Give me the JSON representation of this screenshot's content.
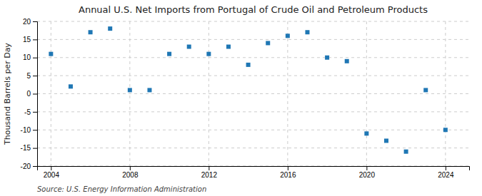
{
  "chart_data": {
    "type": "scatter",
    "title": "Annual U.S. Net Imports from Portugal of Crude Oil and Petroleum Products",
    "ylabel": "Thousand Barrels per Day",
    "annotations": [
      "Source: U.S. Energy Information Administration"
    ],
    "x": [
      2004,
      2005,
      2006,
      2007,
      2008,
      2009,
      2010,
      2011,
      2012,
      2013,
      2014,
      2015,
      2016,
      2017,
      2018,
      2019,
      2020,
      2021,
      2022,
      2023,
      2024
    ],
    "values": [
      11,
      2,
      17,
      18,
      1,
      1,
      11,
      13,
      11,
      13,
      8,
      14,
      16,
      17,
      10,
      9,
      -11,
      -13,
      -16,
      1,
      -10
    ],
    "marker": "square",
    "xlim": [
      2003.3,
      2025.2
    ],
    "xticks": [
      2004,
      2008,
      2012,
      2016,
      2020,
      2024
    ],
    "ylim": [
      -20,
      20
    ],
    "yticks": [
      -20,
      -15,
      -10,
      -5,
      0,
      5,
      10,
      15,
      20
    ],
    "grid": true
  }
}
